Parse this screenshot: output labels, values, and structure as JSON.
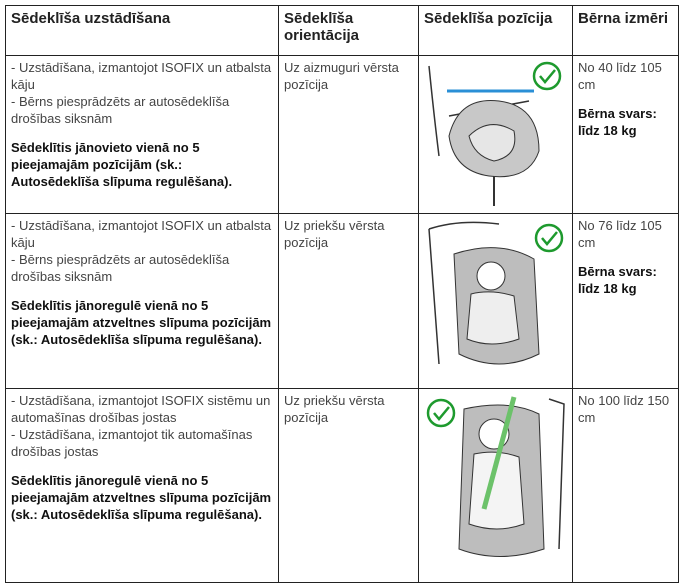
{
  "header": [
    "Sēdeklīša uzstādīšana",
    "Sēdeklīša orientācija",
    "Sēdeklīša pozīcija",
    "Bērna izmēri"
  ],
  "rows": [
    {
      "installation": [
        "- Uzstādīšana, izmantojot ISOFIX un atbalsta kāju",
        "- Bērns piesprādzēts ar autosēdeklīša drošības siksnām"
      ],
      "note": "Sēdeklītis jānovieto vienā no 5 pieejamajām pozīcijām (sk.: Autosēdeklīša slīpuma regulēšana).",
      "orientation": "Uz aizmuguri vērsta pozīcija",
      "size": "No 40 līdz 105 cm",
      "weight": "Bērna svars: līdz 18 kg"
    },
    {
      "installation": [
        "- Uzstādīšana, izmantojot ISOFIX un atbalsta kāju",
        "- Bērns piesprādzēts ar autosēdeklīša drošības siksnām"
      ],
      "note": "Sēdeklītis jānoregulē vienā no 5 pieejamajām atzveltnes slīpuma pozīcijām (sk.: Autosēdeklīša slīpuma regulēšana).",
      "orientation": "Uz priekšu vērsta pozīcija",
      "size": "No 76 līdz 105 cm",
      "weight": "Bērna svars: līdz 18 kg"
    },
    {
      "installation": [
        "- Uzstādīšana, izmantojot ISOFIX sistēmu un automašīnas drošības jostas",
        "- Uzstādīšana, izmantojot tik automašīnas drošības jostas"
      ],
      "note": "Sēdeklītis jānoregulē vienā no 5 pieejamajām atzveltnes slīpuma pozīcijām (sk.: Autosēdeklīša slīpuma regulēšana).",
      "orientation": "Uz priekšu vērsta pozīcija",
      "size": "No 100 līdz 150 cm"
    }
  ]
}
